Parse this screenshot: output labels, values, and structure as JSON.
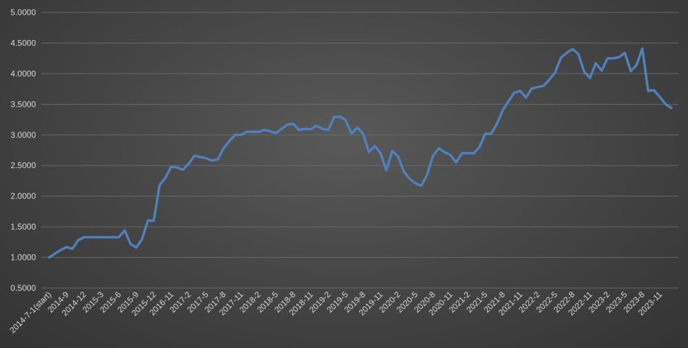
{
  "chart_data": {
    "type": "line",
    "title": "",
    "xlabel": "",
    "ylabel": "",
    "ylim": [
      0.5,
      5.0
    ],
    "ytick_values": [
      0.5,
      1.0,
      1.5,
      2.0,
      2.5,
      3.0,
      3.5,
      4.0,
      4.5,
      5.0
    ],
    "ytick_labels": [
      "0.5000",
      "1.0000",
      "1.5000",
      "2.0000",
      "2.5000",
      "3.0000",
      "3.5000",
      "4.0000",
      "4.5000",
      "5.0000"
    ],
    "grid": true,
    "legend": "none",
    "line_color": "#4f81bd",
    "x_tick_labels": [
      "2014-7-1(start)",
      "2014-9",
      "2014-12",
      "2015-3",
      "2015-6",
      "2015-9",
      "2015-12",
      "2016-11",
      "2017-2",
      "2017-5",
      "2017-8",
      "2017-11",
      "2018-2",
      "2018-5",
      "2018-8",
      "2018-11",
      "2019-2",
      "2019-5",
      "2019-8",
      "2019-11",
      "2020-2",
      "2020-5",
      "2020-8",
      "2020-11",
      "2021-2",
      "2021-5",
      "2021-8",
      "2021-11",
      "2022-2",
      "2022-5",
      "2022-8",
      "2022-11",
      "2023-2",
      "2023-5",
      "2023-8",
      "2023-11"
    ],
    "x_tick_positions": [
      0,
      3,
      6,
      9,
      12,
      15,
      18,
      21,
      24,
      27,
      30,
      33,
      36,
      39,
      42,
      45,
      48,
      51,
      54,
      57,
      60,
      63,
      66,
      69,
      72,
      75,
      78,
      81,
      84,
      87,
      90,
      93,
      96,
      99,
      102,
      105
    ],
    "values": [
      1.0,
      1.06,
      1.12,
      1.17,
      1.14,
      1.28,
      1.33,
      1.33,
      1.33,
      1.33,
      1.33,
      1.33,
      1.33,
      1.44,
      1.22,
      1.16,
      1.3,
      1.6,
      1.6,
      2.18,
      2.3,
      2.48,
      2.47,
      2.43,
      2.53,
      2.66,
      2.64,
      2.62,
      2.58,
      2.6,
      2.78,
      2.9,
      3.0,
      3.0,
      3.05,
      3.05,
      3.05,
      3.08,
      3.06,
      3.03,
      3.1,
      3.17,
      3.18,
      3.08,
      3.1,
      3.09,
      3.15,
      3.1,
      3.08,
      3.29,
      3.3,
      3.24,
      3.02,
      3.12,
      3.02,
      2.72,
      2.82,
      2.7,
      2.42,
      2.74,
      2.65,
      2.4,
      2.28,
      2.21,
      2.17,
      2.35,
      2.66,
      2.78,
      2.72,
      2.67,
      2.55,
      2.7,
      2.7,
      2.7,
      2.8,
      3.02,
      3.02,
      3.18,
      3.4,
      3.55,
      3.69,
      3.72,
      3.61,
      3.76,
      3.78,
      3.8,
      3.9,
      4.02,
      4.26,
      4.34,
      4.4,
      4.32,
      4.03,
      3.93,
      4.17,
      4.05,
      4.25,
      4.25,
      4.27,
      4.34,
      4.04,
      4.14,
      4.41,
      3.72,
      3.73,
      3.62,
      3.5,
      3.44
    ]
  }
}
